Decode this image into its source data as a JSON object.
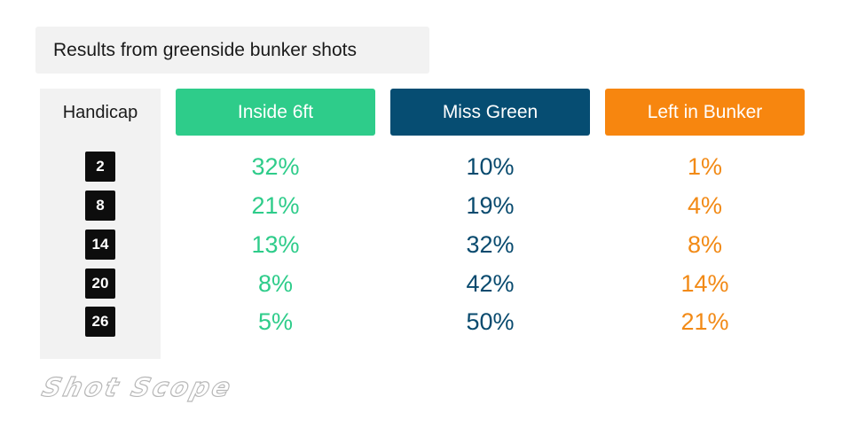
{
  "chart_data": {
    "type": "table",
    "title": "Results from greenside bunker shots",
    "row_header": "Handicap",
    "categories": [
      2,
      8,
      14,
      20,
      26
    ],
    "series": [
      {
        "name": "Inside 6ft",
        "color": "#2ecc8a",
        "header_color": "#2ecc8a",
        "values": [
          32,
          21,
          13,
          8,
          5
        ],
        "labels": [
          "32%",
          "21%",
          "13%",
          "8%",
          "5%"
        ]
      },
      {
        "name": "Miss Green",
        "color": "#084a6e",
        "header_color": "#064d72",
        "values": [
          10,
          19,
          32,
          42,
          50
        ],
        "labels": [
          "10%",
          "19%",
          "32%",
          "42%",
          "50%"
        ]
      },
      {
        "name": "Left in Bunker",
        "color": "#f28a16",
        "header_color": "#f7860f",
        "values": [
          1,
          4,
          8,
          14,
          21
        ],
        "labels": [
          "1%",
          "4%",
          "8%",
          "14%",
          "21%"
        ]
      }
    ]
  },
  "brand": {
    "logo_text": "Shot Scope"
  }
}
